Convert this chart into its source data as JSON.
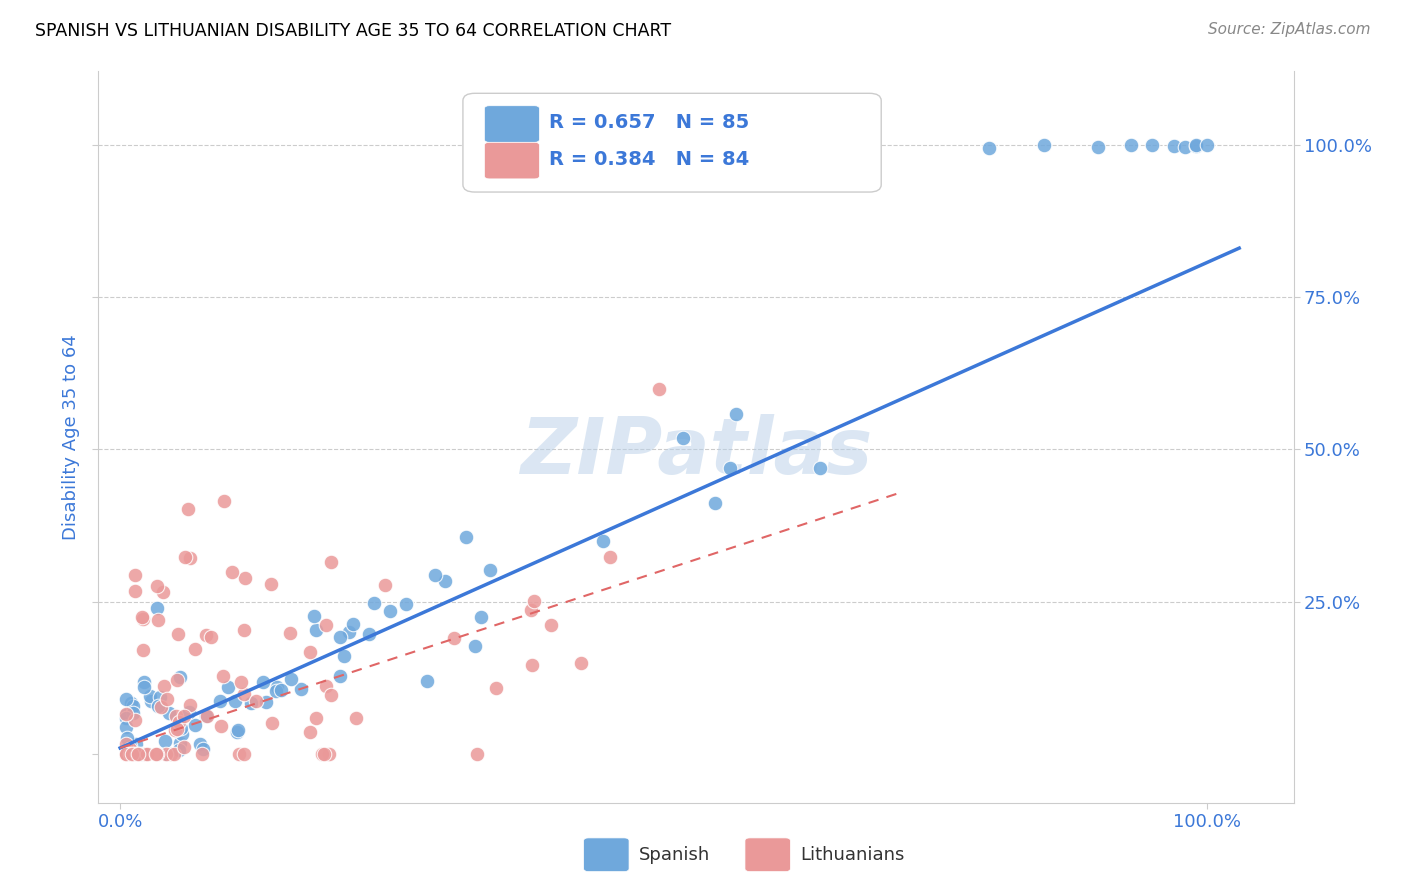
{
  "title": "SPANISH VS LITHUANIAN DISABILITY AGE 35 TO 64 CORRELATION CHART",
  "source": "Source: ZipAtlas.com",
  "ylabel": "Disability Age 35 to 64",
  "legend1_label": "R = 0.657   N = 85",
  "legend2_label": "R = 0.384   N = 84",
  "scatter_blue_color": "#6fa8dc",
  "scatter_pink_color": "#ea9999",
  "regression_blue_color": "#3c78d8",
  "regression_pink_color": "#e06666",
  "watermark_color": "#c9daf8",
  "grid_color": "#cccccc",
  "background_color": "#ffffff",
  "title_color": "#000000",
  "tick_color": "#3c78d8",
  "right_tick_color": "#3c78d8",
  "xlim": [
    -0.02,
    1.08
  ],
  "ylim": [
    -0.08,
    1.12
  ]
}
